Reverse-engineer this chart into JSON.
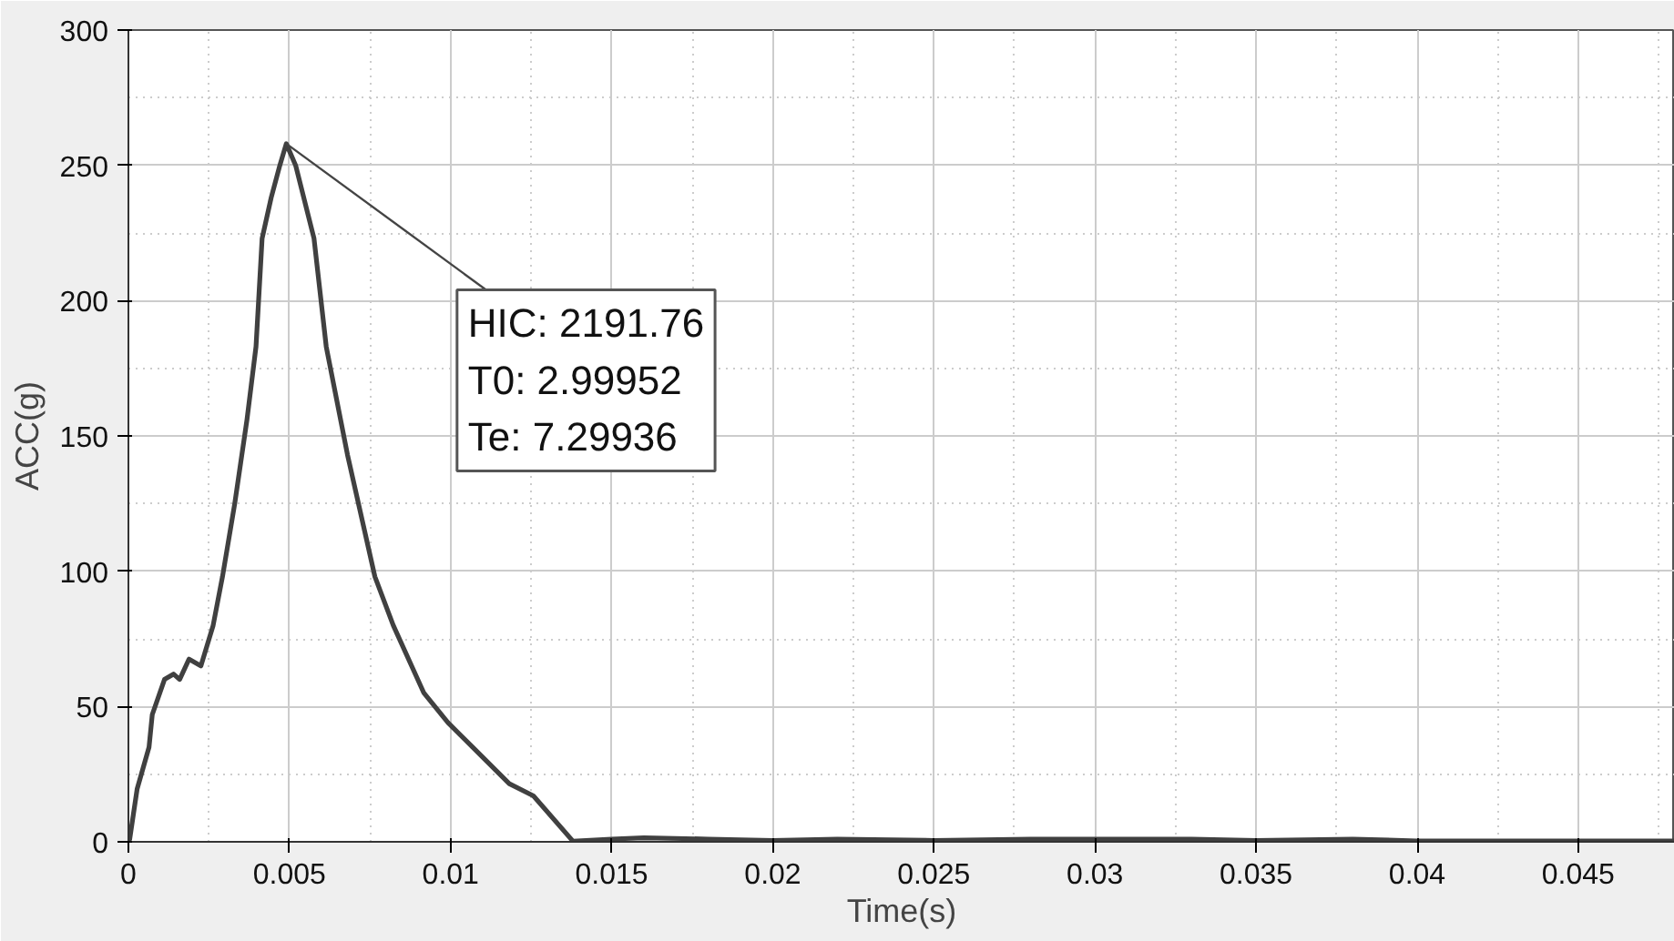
{
  "chart_data": {
    "type": "line",
    "xlabel": "Time(s)",
    "ylabel": "ACC(g)",
    "xlim": [
      0,
      0.048
    ],
    "ylim": [
      0,
      300
    ],
    "xticks": [
      0,
      0.005,
      0.01,
      0.015,
      0.02,
      0.025,
      0.03,
      0.035,
      0.04,
      0.045
    ],
    "yticks": [
      0,
      50,
      100,
      150,
      200,
      250,
      300
    ],
    "grid": true,
    "marker": "none",
    "line_style": "solid",
    "annotations": [
      {
        "text": "HIC: 2191.76\nT0: 2.99952\nTe: 7.29936",
        "x": 0.0049,
        "y": 258
      }
    ],
    "series": [
      {
        "color": "#404040",
        "x": [
          0,
          4e-05,
          0.00027,
          0.00064,
          0.00074,
          0.00112,
          0.0014,
          0.00159,
          0.00188,
          0.00225,
          0.00263,
          0.00292,
          0.0033,
          0.00368,
          0.00396,
          0.00415,
          0.00443,
          0.0047,
          0.0049,
          0.00519,
          0.00576,
          0.00614,
          0.0068,
          0.00765,
          0.00822,
          0.00917,
          0.00992,
          0.01068,
          0.01182,
          0.01257,
          0.0138,
          0.015,
          0.016,
          0.018,
          0.02,
          0.022,
          0.025,
          0.028,
          0.03,
          0.033,
          0.035,
          0.038,
          0.04,
          0.045,
          0.048
        ],
        "values": [
          0,
          1,
          19.5,
          35,
          47,
          60,
          62,
          60,
          67.5,
          65,
          80,
          98,
          125,
          156,
          183,
          223,
          238,
          250,
          258,
          250,
          223,
          183,
          143,
          98,
          80,
          55,
          44,
          35,
          21.5,
          17,
          0.2,
          1,
          1.5,
          1,
          0.5,
          1,
          0.5,
          1,
          1,
          1,
          0.5,
          1,
          0.3,
          0.3,
          0.3
        ]
      }
    ]
  }
}
